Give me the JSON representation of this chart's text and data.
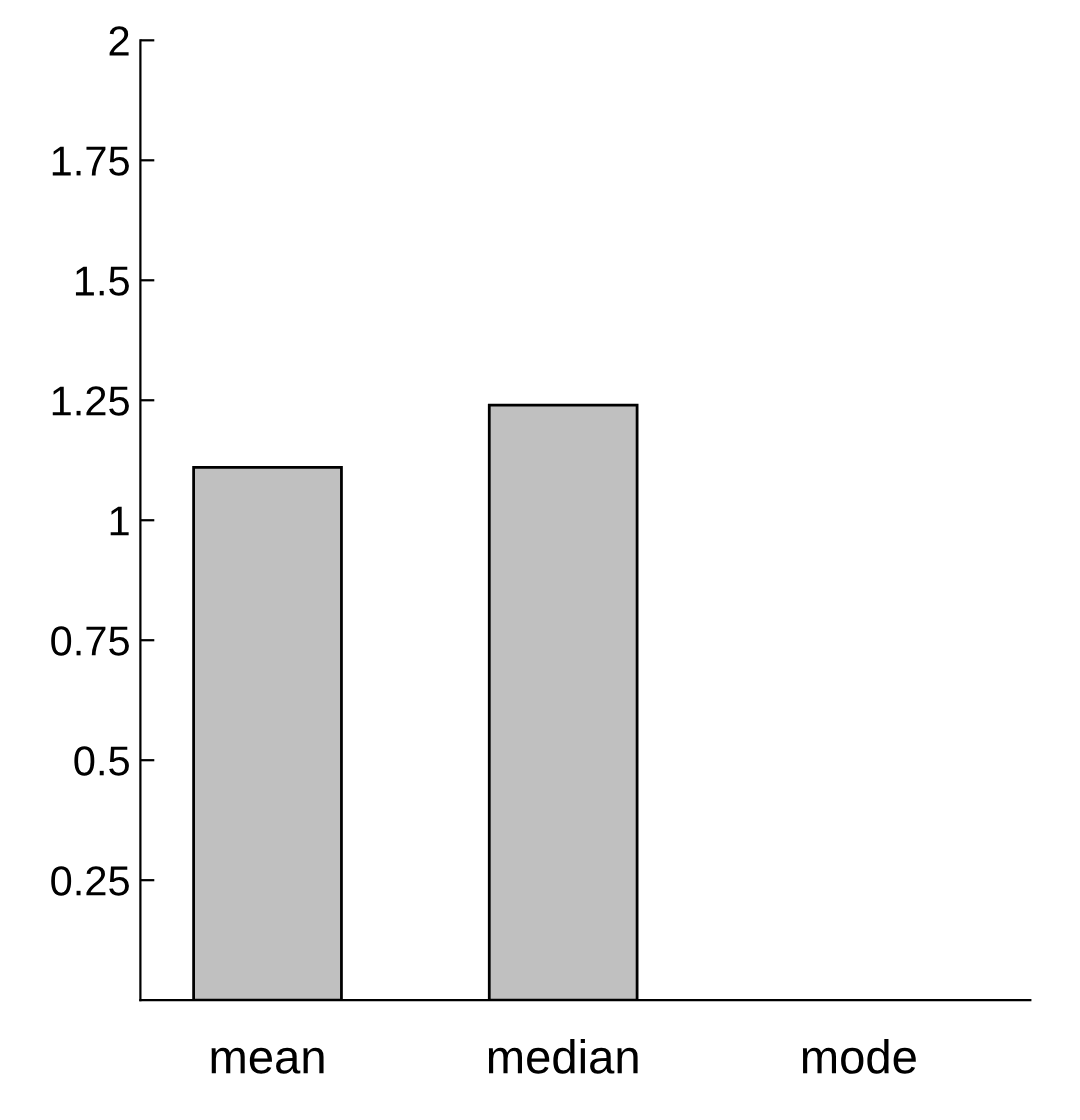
{
  "chart_data": {
    "type": "bar",
    "categories": [
      "mean",
      "median",
      "mode"
    ],
    "values": [
      1.11,
      1.24,
      0
    ],
    "color": "#c0c0c0",
    "ylim": [
      0,
      2
    ],
    "yticks": [
      0.25,
      0.5,
      0.75,
      1,
      1.25,
      1.5,
      1.75,
      2
    ],
    "grid": false,
    "legend": false
  }
}
